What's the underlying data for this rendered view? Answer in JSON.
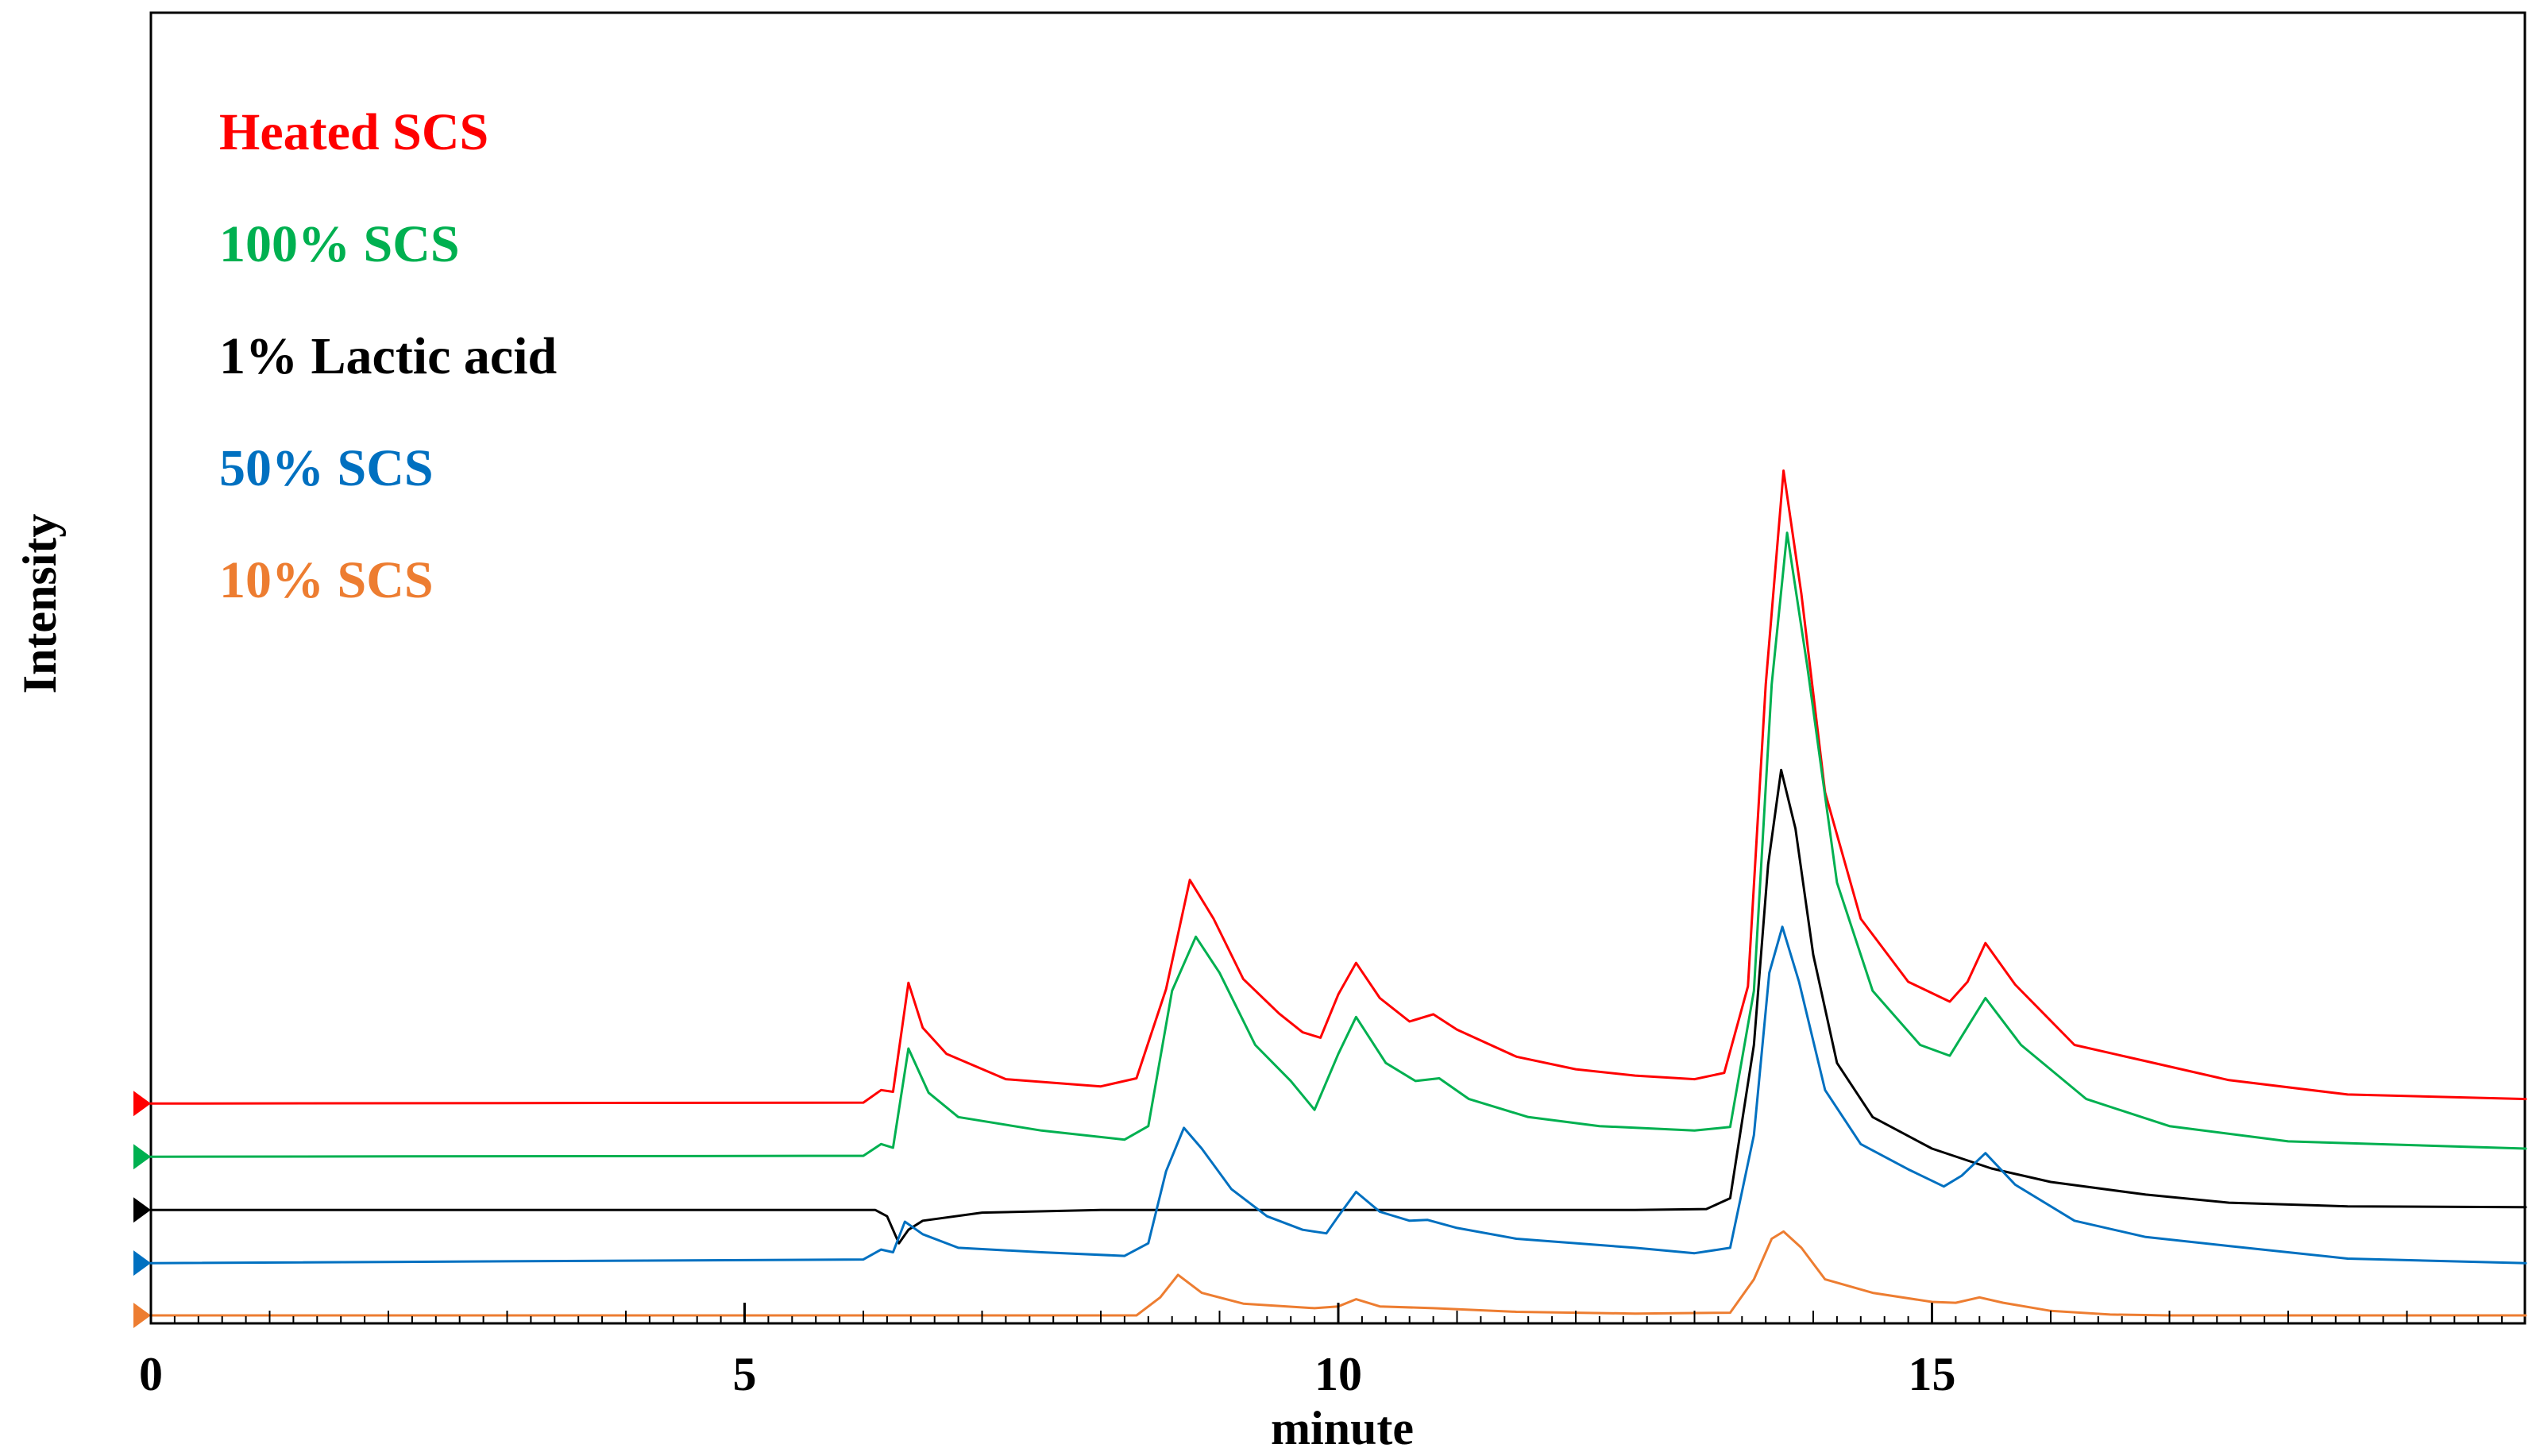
{
  "chart_data": {
    "type": "line",
    "xlabel": "minute",
    "ylabel": "Intensity",
    "xlim": [
      0,
      20
    ],
    "ylim": [
      0,
      100
    ],
    "x_ticks": [
      0,
      5,
      10,
      15
    ],
    "x_tick_labels": [
      "0",
      "5",
      "10",
      "15"
    ],
    "grid": false,
    "legend_position": "top-left",
    "series": [
      {
        "name": "Heated SCS",
        "color": "#ff0000",
        "baseline": 23.5,
        "points": [
          [
            0,
            23.5
          ],
          [
            6,
            23.6
          ],
          [
            6.15,
            25.0
          ],
          [
            6.25,
            24.8
          ],
          [
            6.38,
            36.9
          ],
          [
            6.5,
            31.9
          ],
          [
            6.7,
            29.0
          ],
          [
            7.2,
            26.2
          ],
          [
            8.0,
            25.4
          ],
          [
            8.3,
            26.3
          ],
          [
            8.55,
            36.2
          ],
          [
            8.75,
            48.3
          ],
          [
            8.95,
            44.0
          ],
          [
            9.2,
            37.3
          ],
          [
            9.5,
            33.5
          ],
          [
            9.7,
            31.4
          ],
          [
            9.85,
            30.8
          ],
          [
            10.0,
            35.6
          ],
          [
            10.15,
            39.1
          ],
          [
            10.35,
            35.2
          ],
          [
            10.6,
            32.6
          ],
          [
            10.8,
            33.4
          ],
          [
            11.0,
            31.7
          ],
          [
            11.5,
            28.7
          ],
          [
            12.0,
            27.3
          ],
          [
            12.5,
            26.6
          ],
          [
            13.0,
            26.2
          ],
          [
            13.25,
            26.9
          ],
          [
            13.45,
            36.5
          ],
          [
            13.6,
            70.0
          ],
          [
            13.75,
            93.7
          ],
          [
            13.9,
            80.0
          ],
          [
            14.1,
            58.0
          ],
          [
            14.4,
            44.0
          ],
          [
            14.8,
            37.0
          ],
          [
            15.15,
            34.8
          ],
          [
            15.3,
            37.0
          ],
          [
            15.45,
            41.3
          ],
          [
            15.7,
            36.7
          ],
          [
            16.2,
            30.0
          ],
          [
            16.8,
            28.2
          ],
          [
            17.5,
            26.1
          ],
          [
            18.5,
            24.5
          ],
          [
            20,
            24.0
          ]
        ]
      },
      {
        "name": "100% SCS",
        "color": "#00b050",
        "baseline": 17.6,
        "points": [
          [
            0,
            17.6
          ],
          [
            6,
            17.7
          ],
          [
            6.15,
            19.0
          ],
          [
            6.25,
            18.6
          ],
          [
            6.38,
            29.6
          ],
          [
            6.55,
            24.7
          ],
          [
            6.8,
            22.0
          ],
          [
            7.5,
            20.5
          ],
          [
            8.2,
            19.5
          ],
          [
            8.4,
            21.0
          ],
          [
            8.6,
            36.0
          ],
          [
            8.8,
            42.0
          ],
          [
            9.0,
            38.0
          ],
          [
            9.3,
            30.0
          ],
          [
            9.6,
            26.0
          ],
          [
            9.8,
            22.8
          ],
          [
            10.0,
            29.0
          ],
          [
            10.15,
            33.1
          ],
          [
            10.4,
            28.0
          ],
          [
            10.65,
            26.0
          ],
          [
            10.85,
            26.3
          ],
          [
            11.1,
            24.0
          ],
          [
            11.6,
            22.0
          ],
          [
            12.2,
            21.0
          ],
          [
            13.0,
            20.5
          ],
          [
            13.3,
            20.9
          ],
          [
            13.5,
            36.0
          ],
          [
            13.65,
            70.0
          ],
          [
            13.78,
            86.8
          ],
          [
            13.95,
            72.0
          ],
          [
            14.2,
            48.0
          ],
          [
            14.5,
            36.0
          ],
          [
            14.9,
            30.0
          ],
          [
            15.15,
            28.8
          ],
          [
            15.3,
            32.0
          ],
          [
            15.45,
            35.2
          ],
          [
            15.75,
            30.0
          ],
          [
            16.3,
            24.0
          ],
          [
            17.0,
            21.0
          ],
          [
            18.0,
            19.3
          ],
          [
            20,
            18.5
          ]
        ]
      },
      {
        "name": "1% Lactic acid",
        "color": "#000000",
        "baseline": 11.7,
        "points": [
          [
            0,
            11.7
          ],
          [
            6.1,
            11.7
          ],
          [
            6.2,
            11.0
          ],
          [
            6.3,
            8.0
          ],
          [
            6.38,
            9.5
          ],
          [
            6.5,
            10.5
          ],
          [
            7.0,
            11.4
          ],
          [
            8.0,
            11.7
          ],
          [
            12.5,
            11.7
          ],
          [
            13.1,
            11.8
          ],
          [
            13.3,
            13.0
          ],
          [
            13.5,
            30.0
          ],
          [
            13.62,
            50.0
          ],
          [
            13.73,
            60.5
          ],
          [
            13.85,
            54.0
          ],
          [
            14.0,
            40.0
          ],
          [
            14.2,
            28.0
          ],
          [
            14.5,
            22.0
          ],
          [
            15.0,
            18.5
          ],
          [
            15.5,
            16.3
          ],
          [
            16.0,
            14.8
          ],
          [
            16.8,
            13.4
          ],
          [
            17.5,
            12.5
          ],
          [
            18.5,
            12.1
          ],
          [
            20,
            12.0
          ]
        ]
      },
      {
        "name": "50% SCS",
        "color": "#0070c0",
        "baseline": 5.8,
        "points": [
          [
            0,
            5.8
          ],
          [
            6.0,
            6.2
          ],
          [
            6.15,
            7.3
          ],
          [
            6.25,
            7.0
          ],
          [
            6.35,
            10.4
          ],
          [
            6.5,
            9.0
          ],
          [
            6.8,
            7.5
          ],
          [
            7.5,
            7.0
          ],
          [
            8.2,
            6.6
          ],
          [
            8.4,
            8.0
          ],
          [
            8.55,
            16.0
          ],
          [
            8.7,
            20.8
          ],
          [
            8.85,
            18.5
          ],
          [
            9.1,
            14.0
          ],
          [
            9.4,
            11.0
          ],
          [
            9.7,
            9.5
          ],
          [
            9.9,
            9.1
          ],
          [
            10.0,
            11.0
          ],
          [
            10.15,
            13.7
          ],
          [
            10.35,
            11.5
          ],
          [
            10.6,
            10.5
          ],
          [
            10.75,
            10.6
          ],
          [
            11.0,
            9.7
          ],
          [
            11.5,
            8.5
          ],
          [
            12.5,
            7.5
          ],
          [
            13.0,
            6.9
          ],
          [
            13.3,
            7.5
          ],
          [
            13.5,
            20.0
          ],
          [
            13.63,
            38.0
          ],
          [
            13.74,
            43.1
          ],
          [
            13.88,
            37.0
          ],
          [
            14.1,
            25.0
          ],
          [
            14.4,
            19.0
          ],
          [
            14.8,
            16.2
          ],
          [
            15.1,
            14.3
          ],
          [
            15.25,
            15.5
          ],
          [
            15.45,
            18.0
          ],
          [
            15.7,
            14.5
          ],
          [
            16.2,
            10.5
          ],
          [
            16.8,
            8.7
          ],
          [
            17.5,
            7.7
          ],
          [
            18.5,
            6.3
          ],
          [
            20,
            5.8
          ]
        ]
      },
      {
        "name": "10% SCS",
        "color": "#ed7d31",
        "baseline": 0.0,
        "points": [
          [
            0,
            0.0
          ],
          [
            8.3,
            0.0
          ],
          [
            8.5,
            2.0
          ],
          [
            8.65,
            4.5
          ],
          [
            8.85,
            2.5
          ],
          [
            9.2,
            1.3
          ],
          [
            9.8,
            0.8
          ],
          [
            10.0,
            1.0
          ],
          [
            10.15,
            1.8
          ],
          [
            10.35,
            1.0
          ],
          [
            10.8,
            0.8
          ],
          [
            11.5,
            0.4
          ],
          [
            12.5,
            0.2
          ],
          [
            13.3,
            0.3
          ],
          [
            13.5,
            4.0
          ],
          [
            13.65,
            8.5
          ],
          [
            13.75,
            9.3
          ],
          [
            13.9,
            7.5
          ],
          [
            14.1,
            4.0
          ],
          [
            14.5,
            2.5
          ],
          [
            15.0,
            1.5
          ],
          [
            15.2,
            1.4
          ],
          [
            15.4,
            2.0
          ],
          [
            15.6,
            1.4
          ],
          [
            16.0,
            0.5
          ],
          [
            16.5,
            0.1
          ],
          [
            17.0,
            0.0
          ],
          [
            20,
            0.0
          ]
        ]
      }
    ]
  }
}
